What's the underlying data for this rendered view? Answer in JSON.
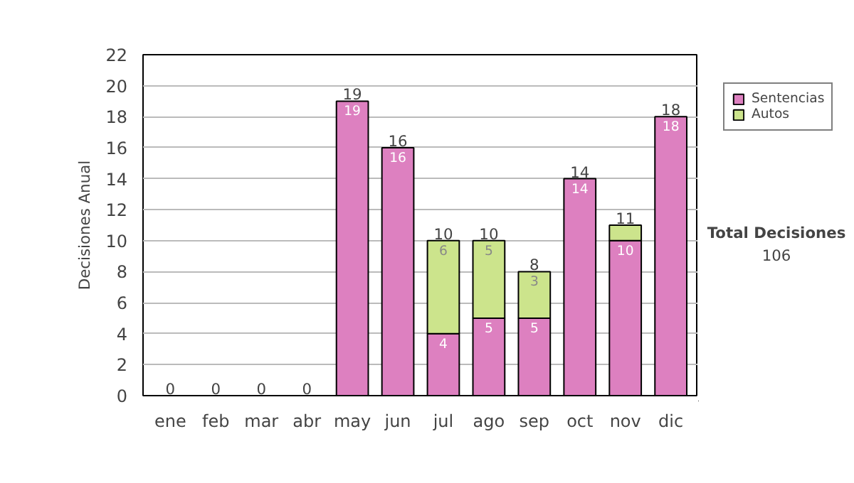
{
  "chart_data": {
    "type": "bar",
    "stacked": true,
    "ylabel": "Decisiones Anual",
    "categories": [
      "ene",
      "feb",
      "mar",
      "abr",
      "may",
      "jun",
      "jul",
      "ago",
      "sep",
      "oct",
      "nov",
      "dic"
    ],
    "series": [
      {
        "name": "Sentencias",
        "color": "#dd80c0",
        "values": [
          0,
          0,
          0,
          0,
          19,
          16,
          4,
          5,
          5,
          14,
          10,
          18
        ],
        "value_labels": [
          null,
          null,
          null,
          null,
          "19",
          "16",
          "4",
          "5",
          "5",
          "14",
          "10",
          "18"
        ]
      },
      {
        "name": "Autos",
        "color": "#cce48c",
        "values": [
          0,
          0,
          0,
          0,
          0,
          0,
          6,
          5,
          3,
          0,
          1,
          0
        ],
        "value_labels": [
          null,
          null,
          null,
          null,
          null,
          null,
          "6",
          "5",
          "3",
          null,
          null,
          null
        ]
      }
    ],
    "totals": [
      "0",
      "0",
      "0",
      "0",
      "19",
      "16",
      "10",
      "10",
      "8",
      "14",
      "11",
      "18"
    ],
    "ylim": [
      0,
      22
    ],
    "yticks": [
      0,
      2,
      4,
      6,
      8,
      10,
      12,
      14,
      16,
      18,
      20,
      22
    ],
    "grid": "y",
    "legend": "right",
    "annotations": [
      "Total Decisiones",
      "106"
    ]
  }
}
